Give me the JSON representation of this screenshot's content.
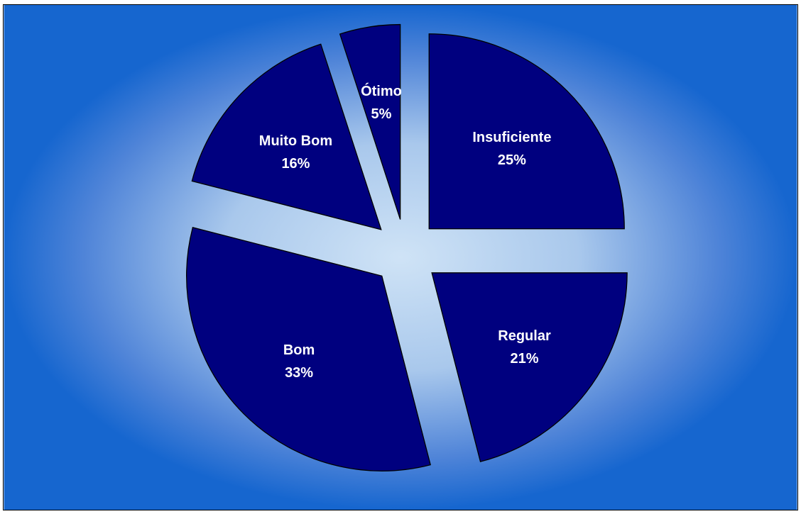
{
  "chart_data": {
    "type": "pie",
    "exploded": true,
    "start": "12 o'clock, clockwise",
    "slices": [
      {
        "name": "Insuficiente",
        "value": 25,
        "label": "25%"
      },
      {
        "name": "Regular",
        "value": 21,
        "label": "21%"
      },
      {
        "name": "Bom",
        "value": 33,
        "label": "33%"
      },
      {
        "name": "Muito Bom",
        "value": 16,
        "label": "16%"
      },
      {
        "name": "Ótimo",
        "value": 5,
        "label": "5%"
      }
    ],
    "colors": {
      "slice_fill": "#00007f",
      "background_center": "#cfe3f6",
      "background_edge": "#1666cf"
    }
  }
}
